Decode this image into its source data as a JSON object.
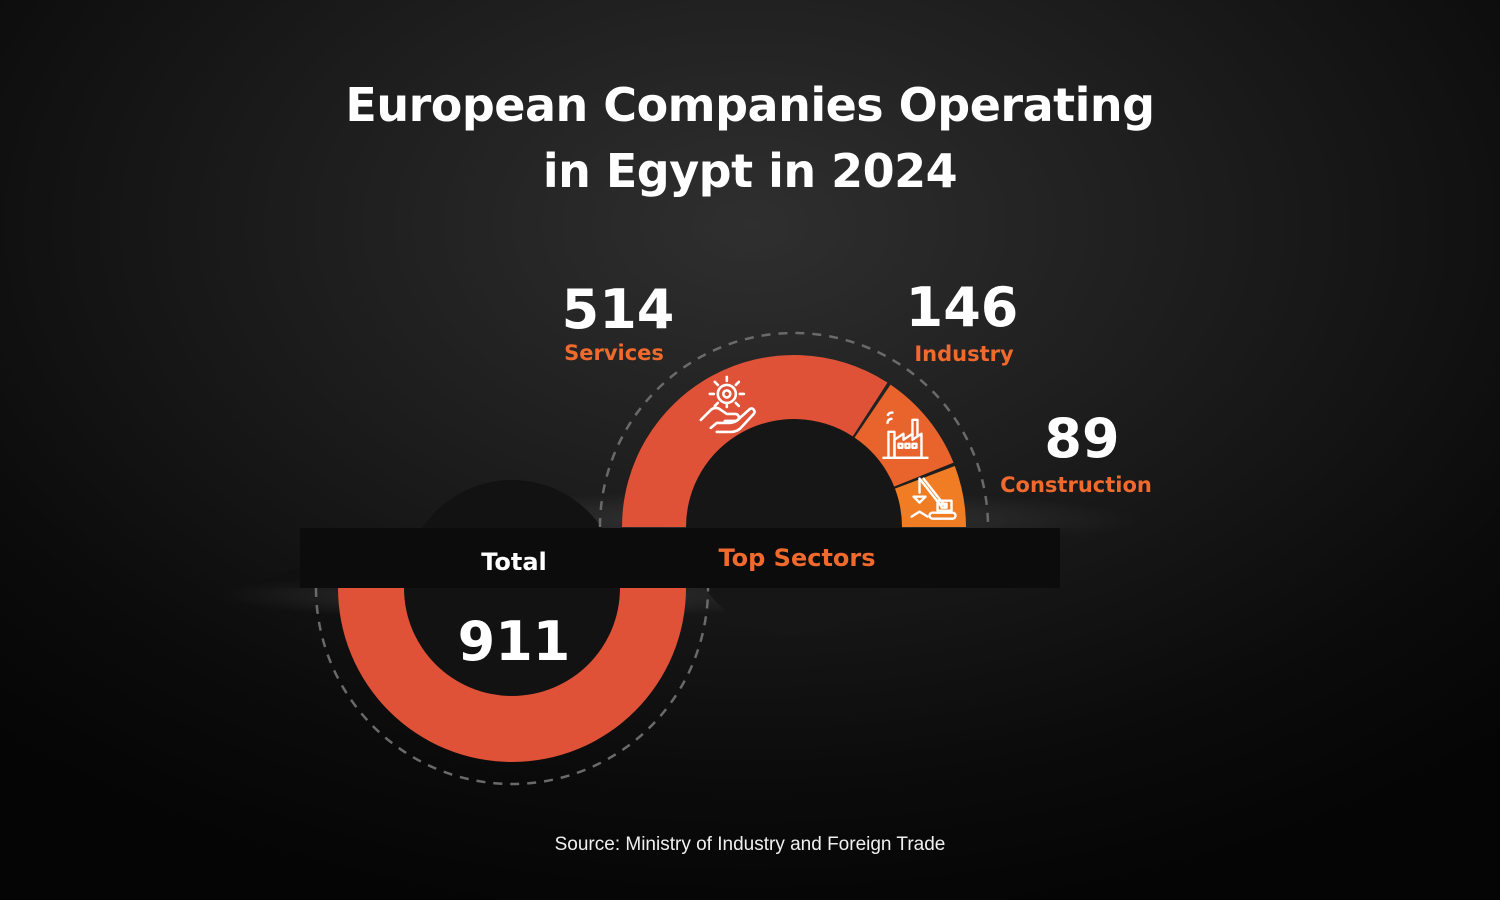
{
  "title_line1": "European Companies Operating",
  "title_line2": "in Egypt in 2024",
  "source": "Source: Ministry of Industry and Foreign Trade",
  "colors": {
    "services": "#e05237",
    "industry": "#e8642c",
    "construction": "#f07c24",
    "total": "#e05237",
    "label_accent": "#f06a2e",
    "text": "#ffffff"
  },
  "chart_data": [
    {
      "type": "pie",
      "title": "Total",
      "slices": [
        {
          "label": "Total",
          "value": 911
        }
      ]
    },
    {
      "type": "pie",
      "title": "Top Sectors",
      "slices": [
        {
          "label": "Services",
          "value": 514,
          "icon": "hand-gear-icon"
        },
        {
          "label": "Industry",
          "value": 146,
          "icon": "factory-icon"
        },
        {
          "label": "Construction",
          "value": 89,
          "icon": "crane-icon"
        }
      ]
    }
  ]
}
